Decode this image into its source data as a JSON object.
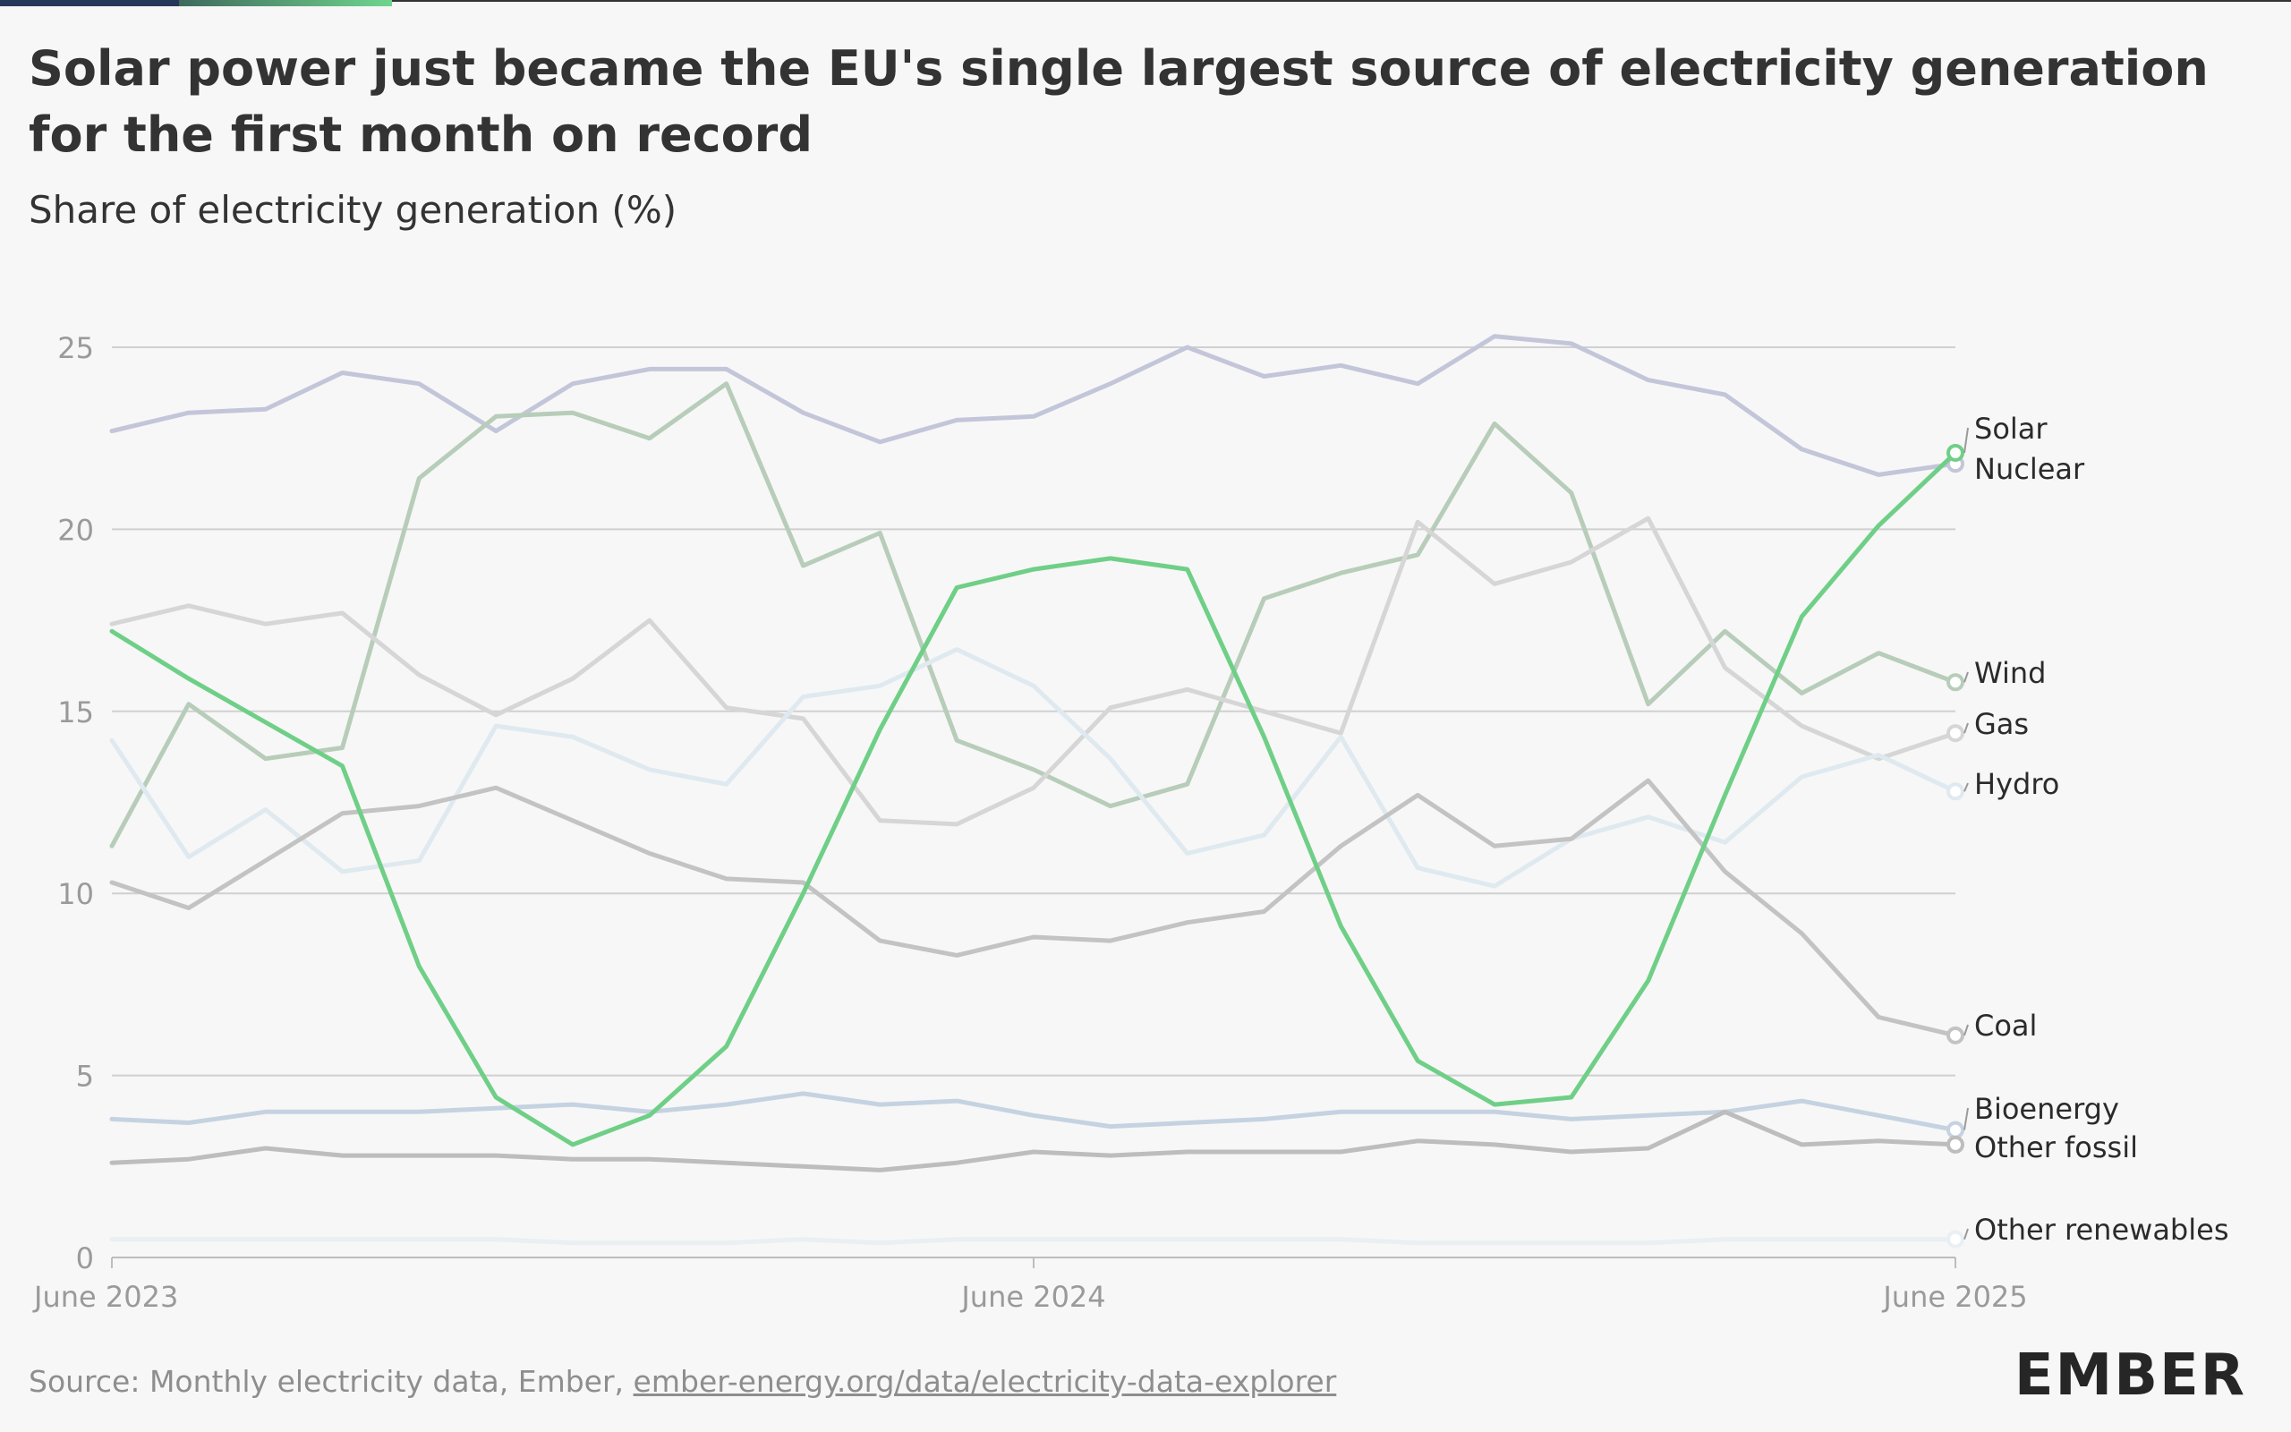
{
  "title": "Solar power just became the EU's single largest source of electricity generation for the first month on record",
  "subtitle": "Share of electricity generation (%)",
  "source_prefix": "Source: Monthly electricity data, Ember, ",
  "source_link": "ember-energy.org/data/electricity-data-explorer",
  "logo": "EMBER",
  "colors": {
    "solar": "#6fcf87",
    "nuclear": "#c3c6d9",
    "wind": "#b7cdb9",
    "gas": "#d6d6d6",
    "hydro": "#dfe9f0",
    "coal": "#c3c3c3",
    "bioenergy": "#c5d2e1",
    "other_fossil": "#bdbdbd",
    "other_renewables": "#e9eff2",
    "grid": "#d0d0d0",
    "axis_text": "#9a9a9a"
  },
  "chart_data": {
    "type": "line",
    "ylim": [
      0,
      25
    ],
    "yticks": [
      0,
      5,
      10,
      15,
      20,
      25
    ],
    "xticks": [
      {
        "index": 0,
        "label": "June 2023"
      },
      {
        "index": 12,
        "label": "June 2024"
      },
      {
        "index": 24,
        "label": "June 2025"
      }
    ],
    "series": [
      {
        "name": "Nuclear",
        "key": "nuclear",
        "values": [
          22.7,
          23.2,
          23.3,
          24.3,
          24.0,
          22.7,
          24.0,
          24.4,
          24.4,
          23.2,
          22.4,
          23.0,
          23.1,
          24.0,
          25.0,
          24.2,
          24.5,
          24.0,
          25.3,
          25.1,
          24.1,
          23.7,
          22.2,
          21.5,
          21.8
        ]
      },
      {
        "name": "Wind",
        "key": "wind",
        "values": [
          11.3,
          15.2,
          13.7,
          14.0,
          21.4,
          23.1,
          23.2,
          22.5,
          24.0,
          19.0,
          19.9,
          14.2,
          13.4,
          12.4,
          13.0,
          18.1,
          18.8,
          19.3,
          22.9,
          21.0,
          15.2,
          17.2,
          15.5,
          16.6,
          15.8
        ]
      },
      {
        "name": "Gas",
        "key": "gas",
        "values": [
          17.4,
          17.9,
          17.4,
          17.7,
          16.0,
          14.9,
          15.9,
          17.5,
          15.1,
          14.8,
          12.0,
          11.9,
          12.9,
          15.1,
          15.6,
          15.0,
          14.4,
          20.2,
          18.5,
          19.1,
          20.3,
          16.2,
          14.6,
          13.7,
          14.4
        ]
      },
      {
        "name": "Hydro",
        "key": "hydro",
        "values": [
          14.2,
          11.0,
          12.3,
          10.6,
          10.9,
          14.6,
          14.3,
          13.4,
          13.0,
          15.4,
          15.7,
          16.7,
          15.7,
          13.7,
          11.1,
          11.6,
          14.3,
          10.7,
          10.2,
          11.5,
          12.1,
          11.4,
          13.2,
          13.8,
          12.8
        ]
      },
      {
        "name": "Coal",
        "key": "coal",
        "values": [
          10.3,
          9.6,
          10.9,
          12.2,
          12.4,
          12.9,
          12.0,
          11.1,
          10.4,
          10.3,
          8.7,
          8.3,
          8.8,
          8.7,
          9.2,
          9.5,
          11.3,
          12.7,
          11.3,
          11.5,
          13.1,
          10.6,
          8.9,
          6.6,
          6.1
        ]
      },
      {
        "name": "Bioenergy",
        "key": "bioenergy",
        "values": [
          3.8,
          3.7,
          4.0,
          4.0,
          4.0,
          4.1,
          4.2,
          4.0,
          4.2,
          4.5,
          4.2,
          4.3,
          3.9,
          3.6,
          3.7,
          3.8,
          4.0,
          4.0,
          4.0,
          3.8,
          3.9,
          4.0,
          4.3,
          3.9,
          3.5
        ]
      },
      {
        "name": "Other fossil",
        "key": "other_fossil",
        "values": [
          2.6,
          2.7,
          3.0,
          2.8,
          2.8,
          2.8,
          2.7,
          2.7,
          2.6,
          2.5,
          2.4,
          2.6,
          2.9,
          2.8,
          2.9,
          2.9,
          2.9,
          3.2,
          3.1,
          2.9,
          3.0,
          4.0,
          3.1,
          3.2,
          3.1
        ]
      },
      {
        "name": "Other renewables",
        "key": "other_renewables",
        "values": [
          0.5,
          0.5,
          0.5,
          0.5,
          0.5,
          0.5,
          0.4,
          0.4,
          0.4,
          0.5,
          0.4,
          0.5,
          0.5,
          0.5,
          0.5,
          0.5,
          0.5,
          0.4,
          0.4,
          0.4,
          0.4,
          0.5,
          0.5,
          0.5,
          0.5
        ]
      },
      {
        "name": "Solar",
        "key": "solar",
        "values": [
          17.2,
          15.9,
          14.7,
          13.5,
          8.0,
          4.4,
          3.1,
          3.9,
          5.8,
          10.0,
          14.5,
          18.4,
          18.9,
          19.2,
          18.9,
          14.3,
          9.1,
          5.4,
          4.2,
          4.4,
          7.6,
          12.7,
          17.6,
          20.1,
          22.1
        ]
      }
    ]
  }
}
